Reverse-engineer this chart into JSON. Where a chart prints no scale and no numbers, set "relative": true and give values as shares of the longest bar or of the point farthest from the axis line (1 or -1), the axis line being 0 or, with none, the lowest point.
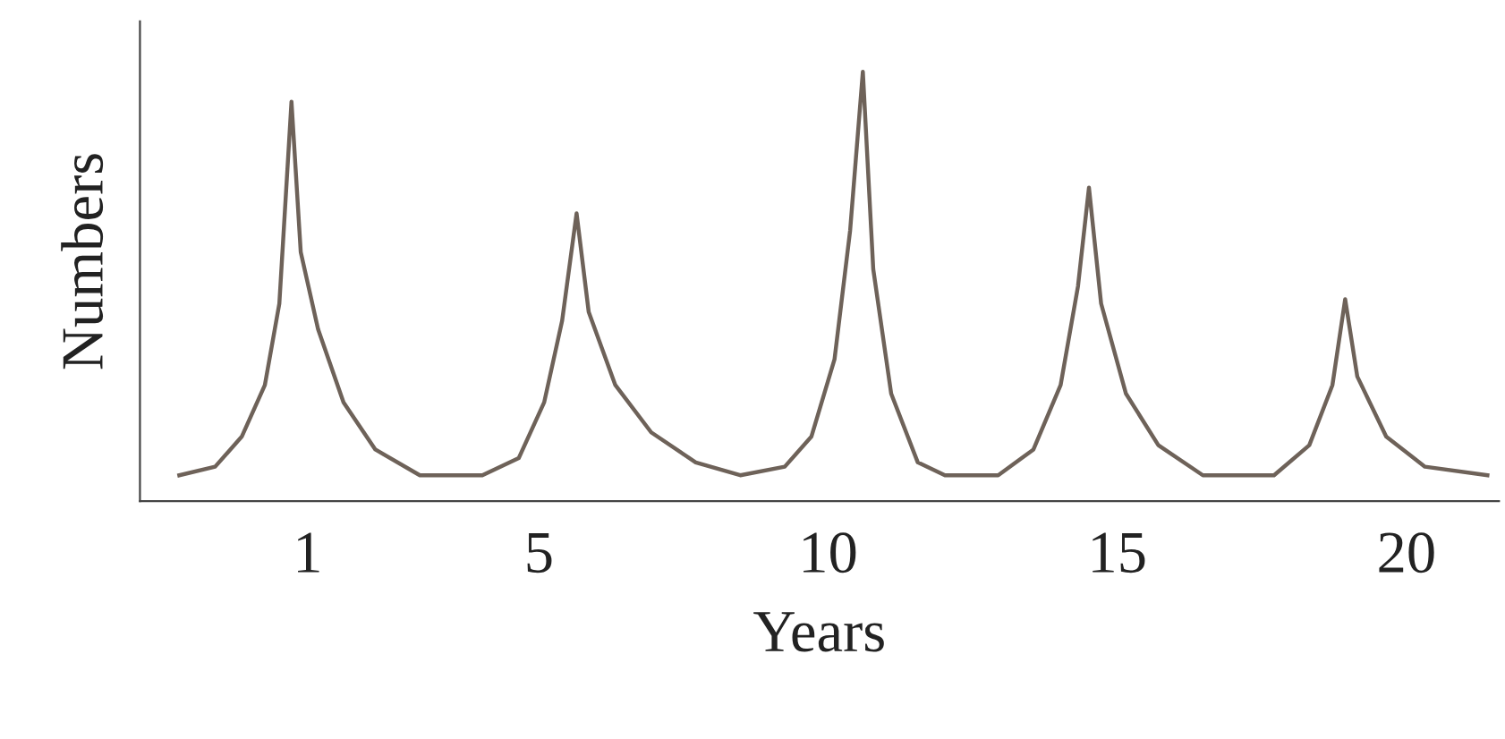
{
  "chart_data": {
    "type": "line",
    "xlabel": "Years",
    "ylabel": "Numbers",
    "relative": true,
    "x": [
      -1.22,
      -0.6,
      -0.14,
      0.26,
      0.51,
      0.72,
      0.88,
      1.18,
      1.62,
      2.17,
      2.94,
      4.02,
      4.65,
      5.09,
      5.4,
      5.65,
      5.86,
      6.32,
      6.94,
      7.71,
      8.48,
      9.25,
      9.71,
      10.11,
      10.38,
      10.6,
      10.78,
      11.09,
      11.55,
      12.02,
      12.94,
      13.55,
      14.02,
      14.32,
      14.51,
      14.72,
      15.15,
      15.71,
      16.48,
      17.71,
      18.32,
      18.72,
      18.94,
      19.15,
      19.65,
      20.32,
      21.4
    ],
    "series": [
      {
        "color": "#6e6259",
        "values": [
          0.06,
          0.08,
          0.15,
          0.27,
          0.46,
          0.93,
          0.58,
          0.4,
          0.23,
          0.12,
          0.06,
          0.06,
          0.1,
          0.23,
          0.42,
          0.67,
          0.44,
          0.27,
          0.16,
          0.09,
          0.06,
          0.08,
          0.15,
          0.33,
          0.63,
          1.0,
          0.54,
          0.25,
          0.09,
          0.06,
          0.06,
          0.12,
          0.27,
          0.5,
          0.73,
          0.46,
          0.25,
          0.13,
          0.06,
          0.06,
          0.13,
          0.27,
          0.47,
          0.29,
          0.15,
          0.08,
          0.06
        ]
      }
    ],
    "xlim": [
      -1.9,
      21.6
    ],
    "xticks": [
      1,
      5,
      10,
      15,
      20
    ],
    "grid": false,
    "legend": false,
    "marker": "none",
    "line_style": "solid"
  }
}
